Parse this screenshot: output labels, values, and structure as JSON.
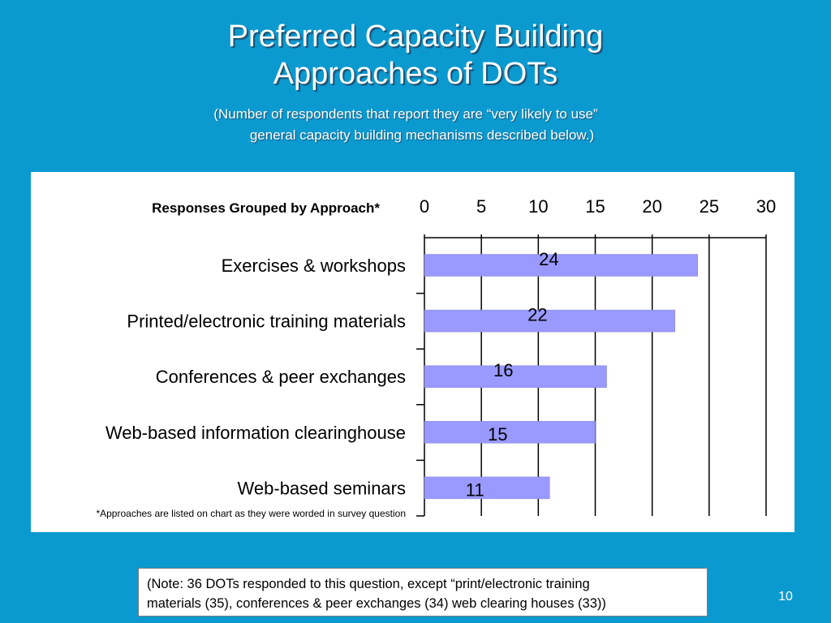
{
  "slide": {
    "title_line1": "Preferred Capacity Building",
    "title_line2": "Approaches of DOTs",
    "subtitle_line1": "(Number of respondents that report they are “very likely to use”",
    "subtitle_line2": "general capacity building mechanisms described below.)",
    "note_line1": "(Note: 36 DOTs responded to this question, except “print/electronic training",
    "note_line2": "materials (35), conferences & peer exchanges (34) web clearing houses (33))",
    "page_number": "10",
    "background_color": "#0b9ad0"
  },
  "chart_data": {
    "type": "bar",
    "orientation": "horizontal",
    "header": "Responses Grouped by Approach*",
    "footnote": "*Approaches are listed on chart as they were worded in survey question",
    "categories": [
      "Exercises & workshops",
      "Printed/electronic training materials",
      "Conferences & peer exchanges",
      "Web-based information clearinghouse",
      "Web-based seminars"
    ],
    "values": [
      24,
      22,
      16,
      15,
      11
    ],
    "data_labels": [
      "24",
      "22",
      "16",
      "15",
      "11"
    ],
    "xlim": [
      0,
      30
    ],
    "x_ticks": [
      "0",
      "5",
      "10",
      "15",
      "20",
      "25",
      "30"
    ],
    "x_axis_position": "top",
    "grid": true,
    "bar_color": "#9999ff"
  }
}
